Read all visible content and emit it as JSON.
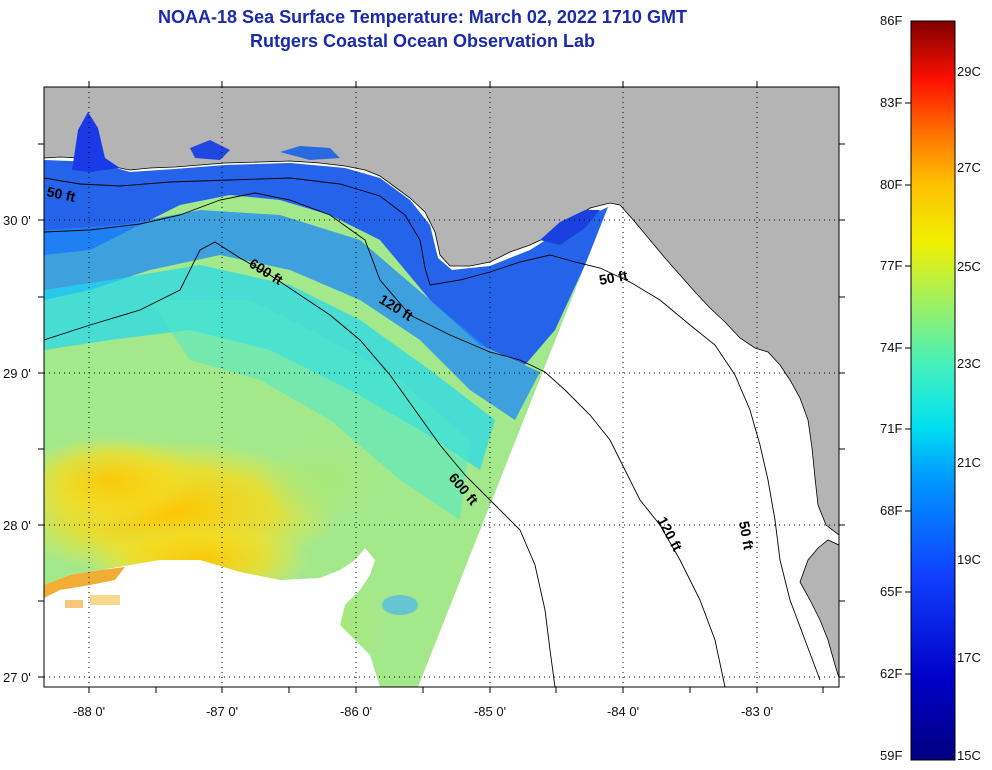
{
  "header": {
    "title": "NOAA-18 Sea Surface Temperature:  March 02, 2022 1710 GMT",
    "subtitle": "Rutgers Coastal Ocean Observation Lab"
  },
  "map": {
    "lat_labels": [
      "30 0'",
      "29 0'",
      "28 0'",
      "27 0'"
    ],
    "lon_labels": [
      "-88 0'",
      "-87 0'",
      "-86 0'",
      "-85 0'",
      "-84 0'",
      "-83 0'"
    ],
    "isobath_labels": [
      "50 ft",
      "600 ft",
      "120 ft",
      "50 ft",
      "600 ft",
      "120 ft",
      "50 ft"
    ],
    "colors": {
      "land": "#b4b4b4",
      "no_data": "#ffffff",
      "isobath": "#000000",
      "grid": "#000000"
    }
  },
  "colorbar": {
    "fahrenheit_labels": [
      "86F",
      "83F",
      "80F",
      "77F",
      "74F",
      "71F",
      "68F",
      "65F",
      "62F",
      "59F"
    ],
    "celsius_labels": [
      "29C",
      "27C",
      "25C",
      "23C",
      "21C",
      "19C",
      "17C",
      "15C"
    ],
    "range_f": [
      59,
      86
    ]
  }
}
